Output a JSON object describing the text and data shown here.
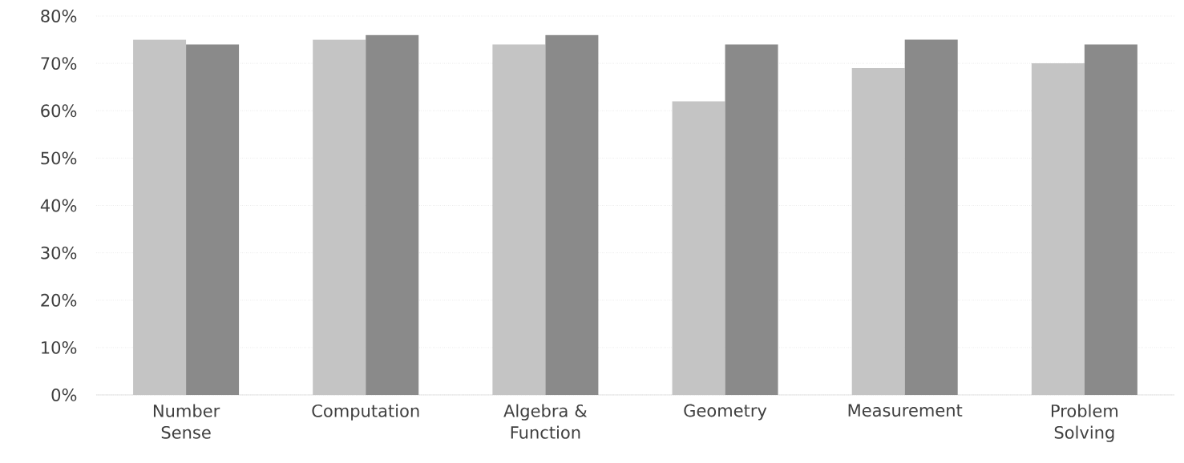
{
  "chart_data": {
    "type": "bar",
    "categories": [
      "Number Sense",
      "Computation",
      "Algebra & Function",
      "Geometry",
      "Measurement",
      "Problem Solving"
    ],
    "series": [
      {
        "color": "#c4c4c4",
        "values": [
          75,
          75,
          74,
          62,
          69,
          70
        ]
      },
      {
        "color": "#8a8a8a",
        "values": [
          74,
          76,
          76,
          74,
          75,
          74
        ]
      }
    ],
    "ylim": [
      0,
      80
    ],
    "yticks": [
      {
        "value": 0,
        "label": "0%"
      },
      {
        "value": 10,
        "label": "10%"
      },
      {
        "value": 20,
        "label": "20%"
      },
      {
        "value": 30,
        "label": "30%"
      },
      {
        "value": 40,
        "label": "40%"
      },
      {
        "value": 50,
        "label": "50%"
      },
      {
        "value": 60,
        "label": "60%"
      },
      {
        "value": 70,
        "label": "70%"
      },
      {
        "value": 80,
        "label": "80%"
      }
    ],
    "grid": "y"
  }
}
